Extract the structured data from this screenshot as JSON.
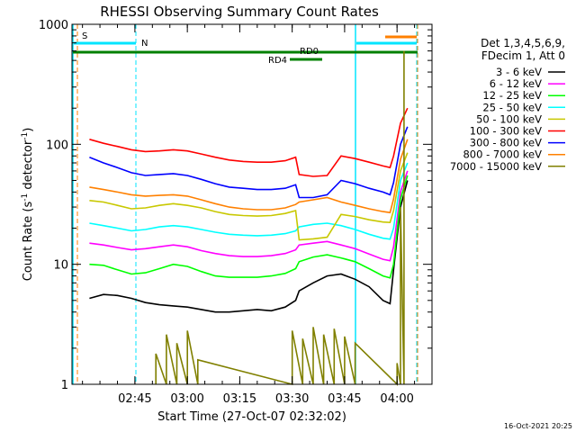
{
  "chart_data": {
    "type": "line",
    "title": "RHESSI Observing Summary Count Rates",
    "xlabel": "Start Time (27-Oct-07 02:32:02)",
    "ylabel_main": "Count Rate (s",
    "ylabel_sup1": "-1",
    "ylabel_mid": " detector",
    "ylabel_sup2": "-1",
    "ylabel_end": ")",
    "yscale": "log",
    "ylim": [
      1,
      1000
    ],
    "xlim_minutes": [
      -3,
      100
    ],
    "yticks": [
      {
        "value": 1,
        "label": "1"
      },
      {
        "value": 10,
        "label": "10"
      },
      {
        "value": 100,
        "label": "100"
      },
      {
        "value": 1000,
        "label": "1000"
      }
    ],
    "xticks": [
      {
        "minute": 15,
        "label": "02:45"
      },
      {
        "minute": 30,
        "label": "03:00"
      },
      {
        "minute": 45,
        "label": "03:15"
      },
      {
        "minute": 60,
        "label": "03:30"
      },
      {
        "minute": 75,
        "label": "03:45"
      },
      {
        "minute": 90,
        "label": "04:00"
      }
    ],
    "legend": {
      "placement": "right",
      "header1": "Det 1,3,4,5,6,9,",
      "header2": "FDecim 1, Att 0"
    },
    "series": [
      {
        "name": "3 - 6 keV",
        "color": "#000000",
        "x": [
          2,
          6,
          10,
          14,
          18,
          22,
          26,
          30,
          34,
          38,
          42,
          46,
          50,
          54,
          58,
          61,
          62,
          66,
          70,
          74,
          78,
          82,
          86,
          88,
          89,
          91,
          93
        ],
        "y": [
          5.2,
          5.6,
          5.5,
          5.2,
          4.8,
          4.6,
          4.5,
          4.4,
          4.2,
          4.0,
          4.0,
          4.1,
          4.2,
          4.1,
          4.4,
          5.0,
          6.0,
          7.0,
          8.0,
          8.3,
          7.5,
          6.5,
          5.0,
          4.7,
          9.0,
          30,
          50
        ]
      },
      {
        "name": "6 - 12 keV",
        "color": "#ff00ff",
        "x": [
          2,
          6,
          10,
          14,
          18,
          22,
          26,
          30,
          34,
          38,
          42,
          46,
          50,
          54,
          58,
          61,
          62,
          66,
          70,
          74,
          78,
          82,
          86,
          88,
          89,
          91,
          93
        ],
        "y": [
          15,
          14.5,
          13.8,
          13.2,
          13.5,
          14.0,
          14.5,
          14.0,
          13.0,
          12.3,
          11.8,
          11.6,
          11.6,
          11.8,
          12.3,
          13.2,
          14.5,
          15.0,
          15.5,
          14.5,
          13.5,
          12.2,
          11.0,
          10.7,
          14.0,
          40,
          60
        ]
      },
      {
        "name": "12 - 25 keV",
        "color": "#00ff00",
        "x": [
          2,
          6,
          10,
          14,
          18,
          22,
          26,
          30,
          34,
          38,
          42,
          46,
          50,
          54,
          58,
          61,
          62,
          66,
          70,
          74,
          78,
          82,
          86,
          88,
          89,
          91,
          93
        ],
        "y": [
          10,
          9.8,
          9.0,
          8.3,
          8.5,
          9.2,
          10.0,
          9.6,
          8.7,
          8.0,
          7.8,
          7.8,
          7.8,
          8.0,
          8.4,
          9.2,
          10.5,
          11.5,
          12.0,
          11.3,
          10.5,
          9.2,
          8.0,
          7.7,
          10.0,
          35,
          55
        ]
      },
      {
        "name": "25 - 50 keV",
        "color": "#00ffff",
        "x": [
          2,
          6,
          10,
          14,
          18,
          22,
          26,
          30,
          34,
          38,
          42,
          46,
          50,
          54,
          58,
          61,
          62,
          66,
          70,
          74,
          78,
          82,
          86,
          88,
          89,
          91,
          93
        ],
        "y": [
          22,
          21,
          20,
          19,
          19.5,
          20.5,
          21,
          20.5,
          19.5,
          18.5,
          17.8,
          17.5,
          17.3,
          17.5,
          18,
          19,
          20.5,
          21.5,
          22,
          21,
          19.5,
          17.8,
          16.5,
          16.2,
          20,
          50,
          70
        ]
      },
      {
        "name": "50 - 100 keV",
        "color": "#c8c800",
        "x": [
          2,
          6,
          10,
          14,
          18,
          22,
          26,
          30,
          34,
          38,
          42,
          46,
          50,
          54,
          58,
          61,
          62,
          66,
          70,
          74,
          78,
          82,
          86,
          88,
          89,
          91,
          93
        ],
        "y": [
          34,
          33,
          31,
          29,
          29.5,
          31,
          32,
          31,
          29.5,
          27.5,
          26,
          25.5,
          25.2,
          25.5,
          26.5,
          28,
          16,
          16.3,
          16.8,
          26,
          25,
          23.5,
          22.5,
          22.3,
          28,
          60,
          85
        ]
      },
      {
        "name": "100 - 300 keV",
        "color": "#ff0000",
        "x": [
          2,
          6,
          10,
          14,
          18,
          22,
          26,
          30,
          34,
          38,
          42,
          46,
          50,
          54,
          58,
          61,
          62,
          66,
          70,
          74,
          78,
          82,
          86,
          88,
          89,
          91,
          93
        ],
        "y": [
          110,
          102,
          96,
          90,
          87,
          88,
          90,
          88,
          83,
          78,
          74,
          72,
          71,
          71,
          73,
          78,
          56,
          54,
          55,
          80,
          76,
          71,
          66,
          64,
          80,
          150,
          200
        ]
      },
      {
        "name": "300 - 800 keV",
        "color": "#0000ff",
        "x": [
          2,
          6,
          10,
          14,
          18,
          22,
          26,
          30,
          34,
          38,
          42,
          46,
          50,
          54,
          58,
          61,
          62,
          66,
          70,
          74,
          78,
          82,
          86,
          88,
          89,
          91,
          93
        ],
        "y": [
          78,
          70,
          64,
          58,
          55,
          56,
          57,
          55,
          51,
          47,
          44,
          43,
          42,
          42,
          43,
          46,
          36,
          36,
          38,
          50,
          47,
          43,
          40,
          38,
          48,
          100,
          140
        ]
      },
      {
        "name": "800 - 7000 keV",
        "color": "#ff8000",
        "x": [
          2,
          6,
          10,
          14,
          18,
          22,
          26,
          30,
          34,
          38,
          42,
          46,
          50,
          54,
          58,
          61,
          62,
          66,
          70,
          74,
          78,
          82,
          86,
          88,
          89,
          91,
          93
        ],
        "y": [
          44,
          42,
          40,
          38,
          37,
          37.5,
          38,
          37,
          34.5,
          32,
          30,
          29,
          28.5,
          28.5,
          29.5,
          31.5,
          33,
          34.5,
          36,
          33,
          31,
          29,
          27.5,
          27,
          35,
          75,
          110
        ]
      },
      {
        "name": "7000 - 15000 keV",
        "color": "#808000",
        "x": [
          21,
          24,
          27,
          30,
          33,
          60,
          63,
          66,
          69,
          72,
          75,
          78,
          90,
          91,
          92
        ],
        "y": [
          1.8,
          2.6,
          2.2,
          2.8,
          1.6,
          2.8,
          2.4,
          3.0,
          2.6,
          2.9,
          2.5,
          2.2,
          1.5,
          30,
          600
        ]
      }
    ],
    "annotations": [
      {
        "label": "S",
        "color": "#ff8000"
      },
      {
        "label": "N",
        "color": "#00e5ff"
      },
      {
        "label": "RD0",
        "color": "#008000"
      },
      {
        "label": "RD4",
        "color": "#008000"
      }
    ],
    "timestamp": "16-Oct-2021 20:25"
  }
}
